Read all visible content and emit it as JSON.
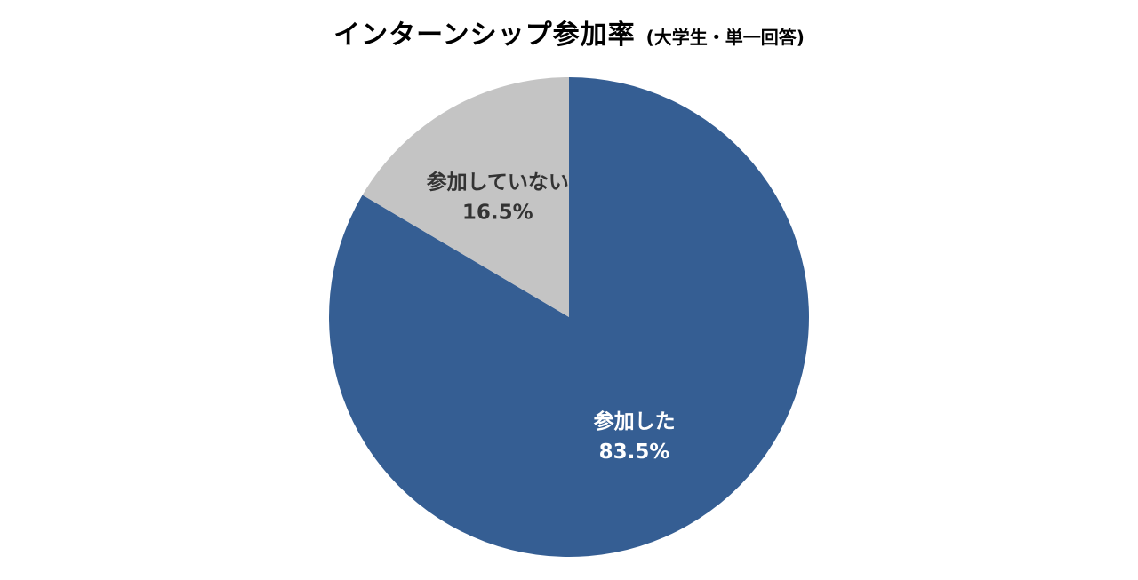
{
  "chart_data": {
    "type": "pie",
    "title": "インターンシップ参加率",
    "subtitle": "(大学生・単一回答)",
    "slices": [
      {
        "label": "参加した",
        "value": 83.5,
        "value_label": "83.5%",
        "color": "#355e93",
        "text_color": "#ffffff"
      },
      {
        "label": "参加していない",
        "value": 16.5,
        "value_label": "16.5%",
        "color": "#c4c4c4",
        "text_color": "#333333"
      }
    ],
    "start_angle": "12 o'clock",
    "direction": "clockwise",
    "legend": "none"
  }
}
